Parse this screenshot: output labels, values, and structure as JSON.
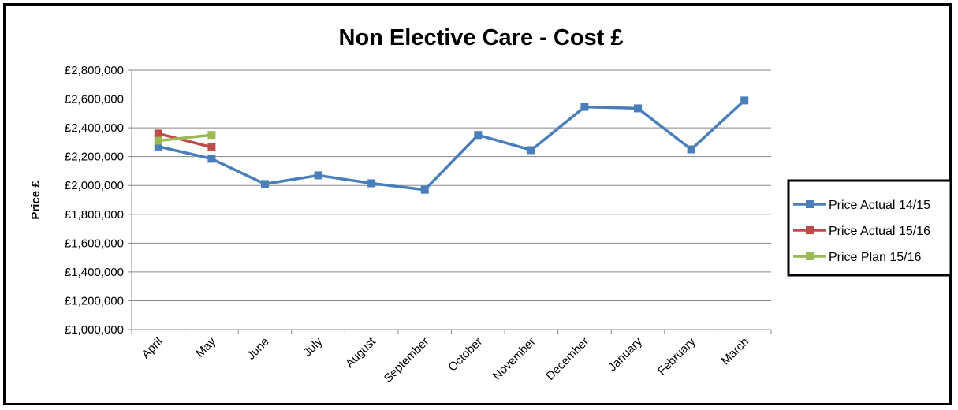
{
  "chart_data": {
    "type": "line",
    "title": "Non Elective Care - Cost £",
    "xlabel": "",
    "ylabel": "Price £",
    "categories": [
      "April",
      "May",
      "June",
      "July",
      "August",
      "September",
      "October",
      "November",
      "December",
      "January",
      "February",
      "March"
    ],
    "ylim": [
      1000000,
      2800000
    ],
    "yticks": [
      1000000,
      1200000,
      1400000,
      1600000,
      1800000,
      2000000,
      2200000,
      2400000,
      2600000,
      2800000
    ],
    "ytick_labels": [
      "£1,000,000",
      "£1,200,000",
      "£1,400,000",
      "£1,600,000",
      "£1,800,000",
      "£2,000,000",
      "£2,200,000",
      "£2,400,000",
      "£2,600,000",
      "£2,800,000"
    ],
    "grid": true,
    "legend_position": "right",
    "series": [
      {
        "name": "Price Actual 14/15",
        "color": "#4a7ebb",
        "values": [
          2270000,
          2185000,
          2010000,
          2070000,
          2015000,
          1970000,
          2350000,
          2245000,
          2545000,
          2535000,
          2250000,
          2590000
        ]
      },
      {
        "name": "Price Actual 15/16",
        "color": "#be4b48",
        "values": [
          2360000,
          2265000,
          null,
          null,
          null,
          null,
          null,
          null,
          null,
          null,
          null,
          null
        ]
      },
      {
        "name": "Price Plan 15/16",
        "color": "#98b954",
        "values": [
          2310000,
          2350000,
          null,
          null,
          null,
          null,
          null,
          null,
          null,
          null,
          null,
          null
        ]
      }
    ]
  }
}
